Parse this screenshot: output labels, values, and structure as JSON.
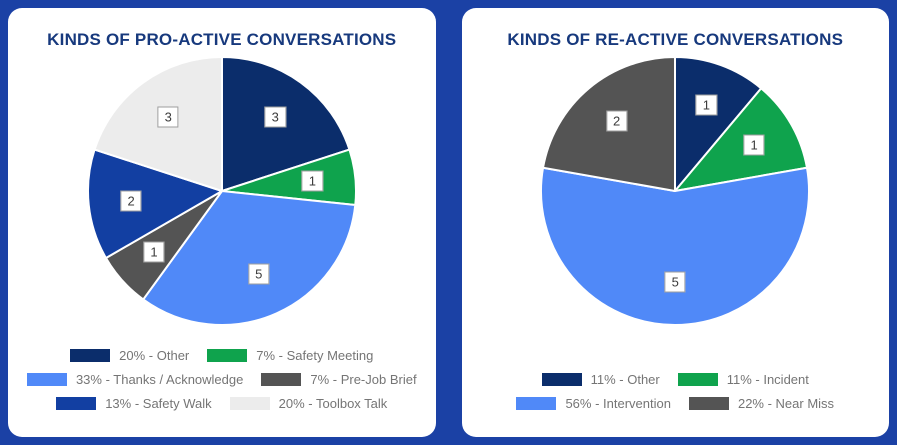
{
  "page": {
    "background_color": "#1b41a5",
    "card_color": "#ffffff",
    "title_color": "#17397d",
    "legend_text_color": "#757575",
    "slice_border_color": "#ffffff",
    "label_box_border_color": "#9e9e9e",
    "label_text_color": "#3c3c3c"
  },
  "chart_data": [
    {
      "type": "pie",
      "title": "KINDS OF PRO-ACTIVE CONVERSATIONS",
      "total": 15,
      "start_angle": 0,
      "direction": "clockwise",
      "legend_position": "bottom",
      "legend_columns": 2,
      "legend_separator": " - ",
      "slices": [
        {
          "name": "Other",
          "value": 3,
          "percent_label": "20%",
          "color": "#0b2d6b"
        },
        {
          "name": "Safety Meeting",
          "value": 1,
          "percent_label": "7%",
          "color": "#0fa34d"
        },
        {
          "name": "Thanks / Acknowledge",
          "value": 5,
          "percent_label": "33%",
          "color": "#5089f8"
        },
        {
          "name": "Pre-Job Brief",
          "value": 1,
          "percent_label": "7%",
          "color": "#545454"
        },
        {
          "name": "Safety Walk",
          "value": 2,
          "percent_label": "13%",
          "color": "#123fa2"
        },
        {
          "name": "Toolbox Talk",
          "value": 3,
          "percent_label": "20%",
          "color": "#ececec"
        }
      ]
    },
    {
      "type": "pie",
      "title": "KINDS OF RE-ACTIVE CONVERSATIONS",
      "total": 9,
      "start_angle": 0,
      "direction": "clockwise",
      "legend_position": "bottom",
      "legend_columns": 2,
      "legend_separator": " - ",
      "slices": [
        {
          "name": "Other",
          "value": 1,
          "percent_label": "11%",
          "color": "#0b2d6b"
        },
        {
          "name": "Incident",
          "value": 1,
          "percent_label": "11%",
          "color": "#0fa34d"
        },
        {
          "name": "Intervention",
          "value": 5,
          "percent_label": "56%",
          "color": "#5089f8"
        },
        {
          "name": "Near Miss",
          "value": 2,
          "percent_label": "22%",
          "color": "#545454"
        }
      ]
    }
  ]
}
